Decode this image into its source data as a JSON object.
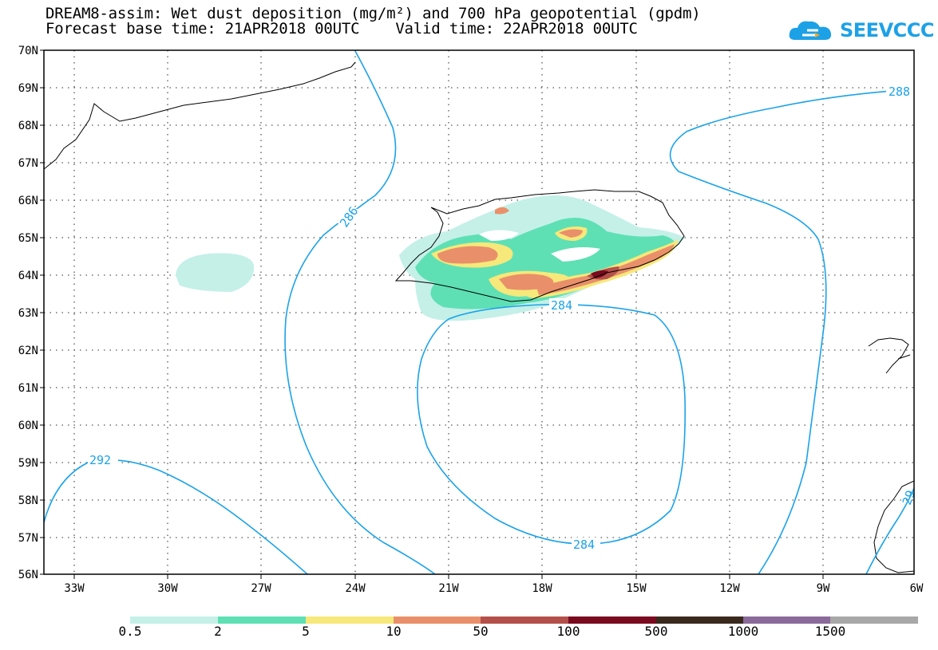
{
  "title_line1": "DREAM8-assim: Wet dust deposition (mg/m²) and 700 hPa geopotential (gpdm)",
  "title_line2": "Forecast base time: 21APR2018 00UTC    Valid time: 22APR2018 00UTC",
  "logo_text": "SEEVCCC",
  "colors": {
    "contour": "#1ba3e8",
    "coast": "#000000"
  },
  "lat_labels": [
    "70N",
    "69N",
    "68N",
    "67N",
    "66N",
    "65N",
    "64N",
    "63N",
    "62N",
    "61N",
    "60N",
    "59N",
    "58N",
    "57N",
    "56N"
  ],
  "lon_labels": [
    "33W",
    "30W",
    "27W",
    "24W",
    "21W",
    "18W",
    "15W",
    "12W",
    "9W",
    "6W"
  ],
  "contour_labels": [
    "288",
    "286",
    "284",
    "284",
    "292",
    "29"
  ],
  "colorbar": {
    "colors": [
      "#c4f0e8",
      "#5ee0b4",
      "#f6e87a",
      "#e9906a",
      "#b4504a",
      "#7a0a1e",
      "#3a2a1e",
      "#8a6a9a",
      "#a8a8a8"
    ],
    "labels": [
      "0.5",
      "2",
      "5",
      "10",
      "50",
      "100",
      "500",
      "1000",
      "1500"
    ]
  }
}
